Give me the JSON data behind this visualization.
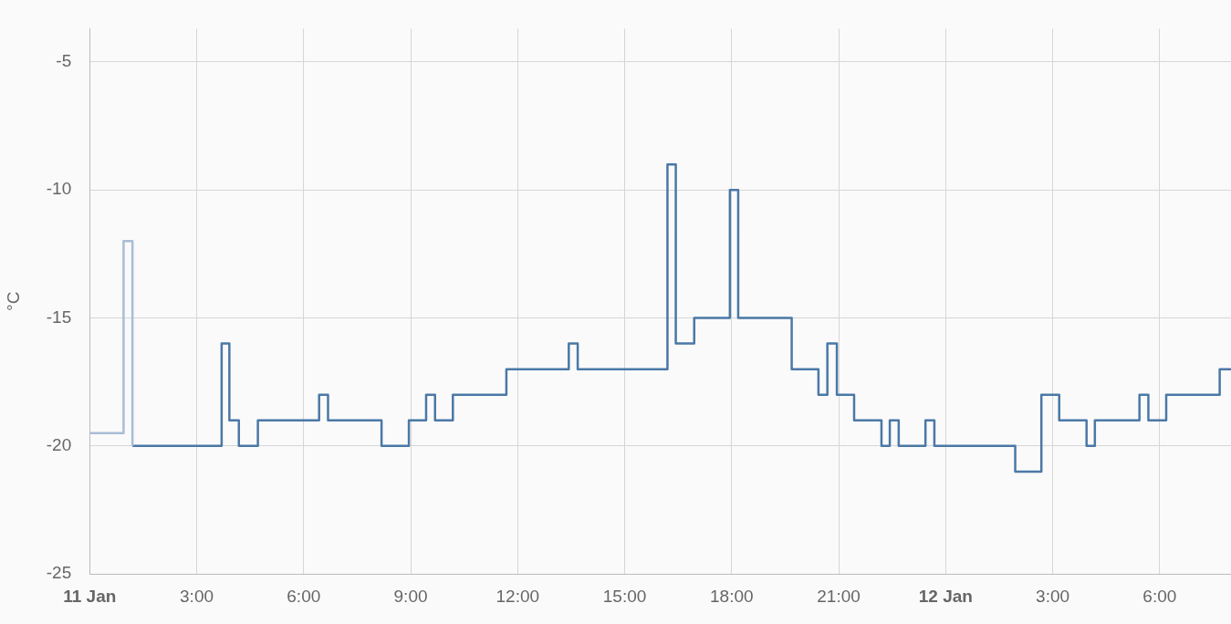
{
  "chart_data": {
    "type": "step",
    "ylabel": "°C",
    "xlim": [
      "--01-11T00:00",
      "--01-12T08:00"
    ],
    "ylim": [
      -25,
      -3.7
    ],
    "xticks": [
      {
        "value": "--01-11T00:00",
        "label": "11 Jan"
      },
      {
        "value": "--01-11T03:00",
        "label": "3:00"
      },
      {
        "value": "--01-11T06:00",
        "label": "6:00"
      },
      {
        "value": "--01-11T09:00",
        "label": "9:00"
      },
      {
        "value": "--01-11T12:00",
        "label": "12:00"
      },
      {
        "value": "--01-11T15:00",
        "label": "15:00"
      },
      {
        "value": "--01-11T18:00",
        "label": "18:00"
      },
      {
        "value": "--01-11T21:00",
        "label": "21:00"
      },
      {
        "value": "--01-12T00:00",
        "label": "12 Jan"
      },
      {
        "value": "--01-12T03:00",
        "label": "3:00"
      },
      {
        "value": "--01-12T06:00",
        "label": "6:00"
      }
    ],
    "yticks": [
      -5,
      -10,
      -15,
      -20,
      -25
    ],
    "grid": true,
    "legend": false,
    "series": [
      {
        "color": "#a9bdd5",
        "x": [
          "--01-11T00:00",
          "--01-11T00:57",
          "--01-11T01:12"
        ],
        "values": [
          -19.5,
          -12,
          -20
        ]
      },
      {
        "color": "#4a78a6",
        "x": [
          "--01-11T01:12",
          "--01-11T03:42",
          "--01-11T03:55",
          "--01-11T04:11",
          "--01-11T04:43",
          "--01-11T06:26",
          "--01-11T06:41",
          "--01-11T08:11",
          "--01-11T08:57",
          "--01-11T09:26",
          "--01-11T09:41",
          "--01-11T10:11",
          "--01-11T11:41",
          "--01-11T13:26",
          "--01-11T13:41",
          "--01-11T16:12",
          "--01-11T16:26",
          "--01-11T16:57",
          "--01-11T17:57",
          "--01-11T18:11",
          "--01-11T19:41",
          "--01-11T20:26",
          "--01-11T20:41",
          "--01-11T20:57",
          "--01-11T21:26",
          "--01-11T22:12",
          "--01-11T22:26",
          "--01-11T22:41",
          "--01-11T23:26",
          "--01-11T23:41",
          "--01-12T01:57",
          "--01-12T02:41",
          "--01-12T03:11",
          "--01-12T03:57",
          "--01-12T04:11",
          "--01-12T05:26",
          "--01-12T05:41",
          "--01-12T06:11",
          "--01-12T07:41",
          "--01-12T08:00"
        ],
        "values": [
          -20,
          -16,
          -19,
          -20,
          -19,
          -18,
          -19,
          -20,
          -19,
          -18,
          -19,
          -18,
          -17,
          -16,
          -17,
          -9,
          -16,
          -15,
          -10,
          -15,
          -17,
          -18,
          -16,
          -18,
          -19,
          -20,
          -19,
          -20,
          -19,
          -20,
          -21,
          -18,
          -19,
          -20,
          -19,
          -18,
          -19,
          -18,
          -17,
          -17
        ]
      }
    ]
  }
}
